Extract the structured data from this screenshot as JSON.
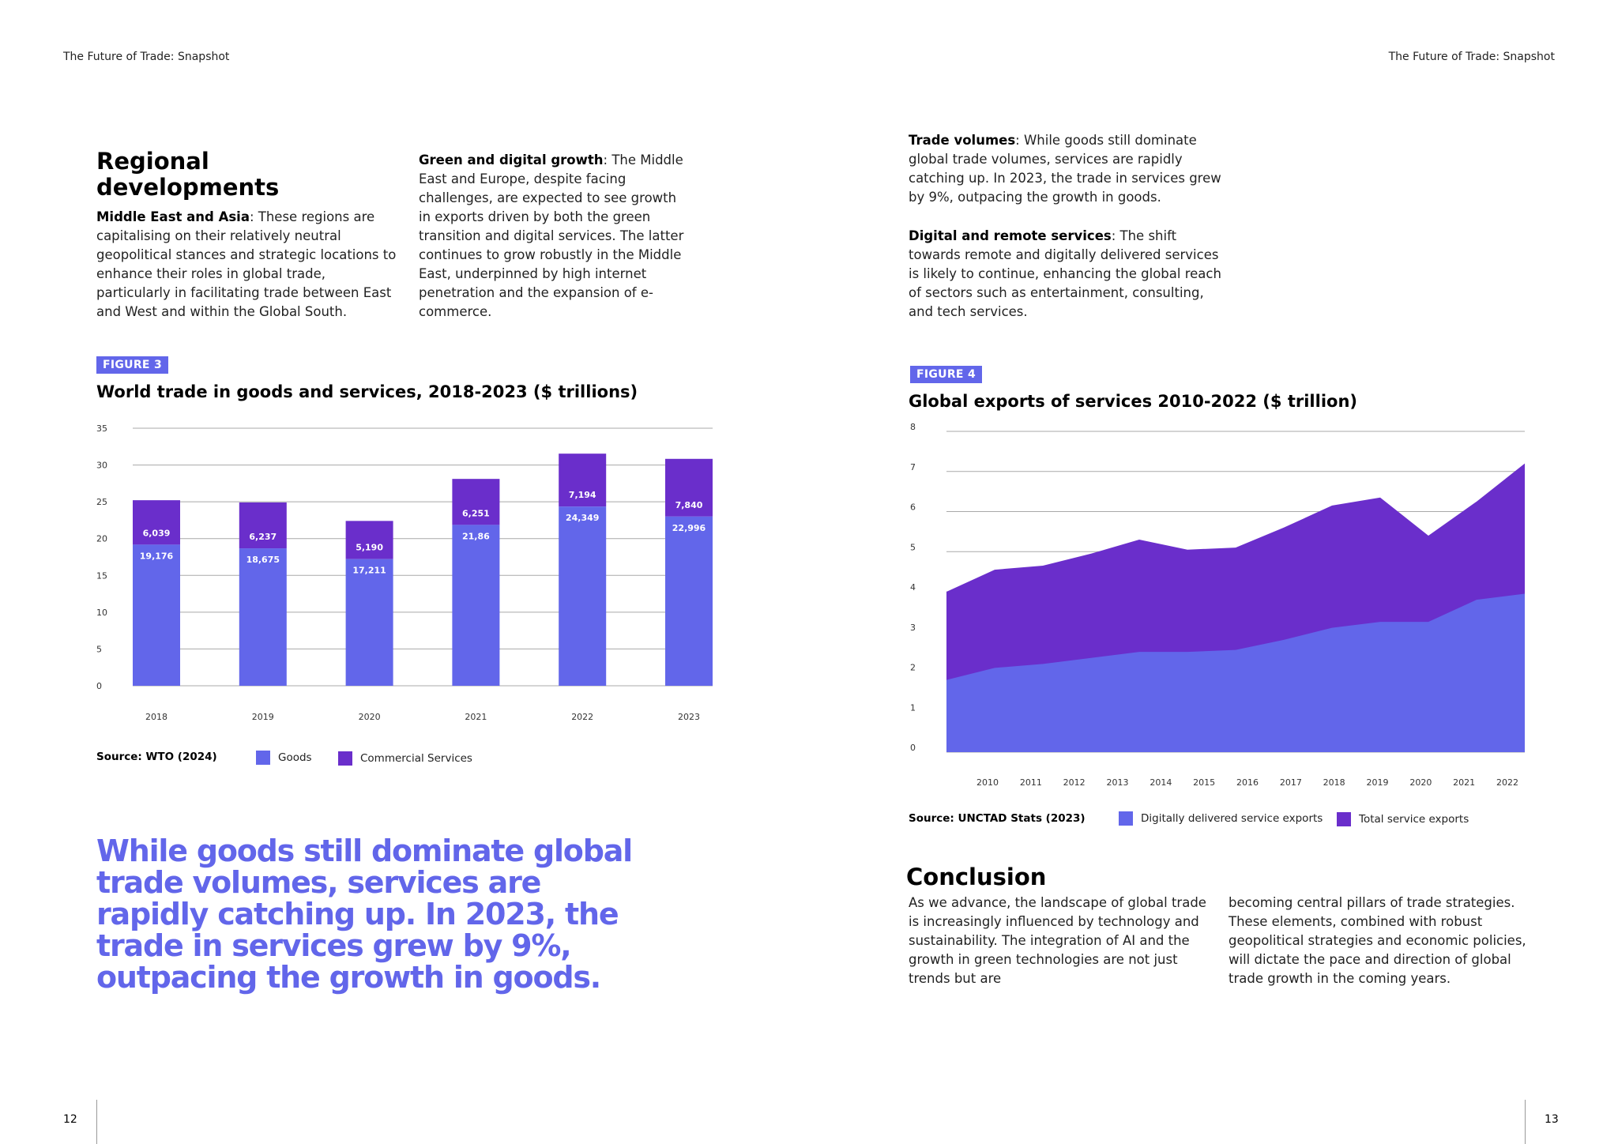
{
  "header": {
    "left_running_title": "The Future of Trade: Snapshot",
    "right_running_title": "The Future of Trade: Snapshot"
  },
  "left_page": {
    "heading": "Regional developments",
    "heading_line1": "Regional",
    "heading_line2": "developments",
    "para_mideast": {
      "label": "Middle East and Asia",
      "text": ": These regions are capitalising on their relatively neutral geopolitical stances and strategic locations to enhance their roles in global trade, particularly in facilitating trade between East and West and within the Global South."
    },
    "para_green": {
      "label": "Green and digital growth",
      "text": ": The Middle East and Europe, despite facing challenges, are expected to see growth in exports driven by both the green transition and digital services. The latter continues to grow robustly in the Middle East, underpinned by high internet penetration and the expansion of e-commerce."
    },
    "figure_label": "FIGURE 3",
    "figure_title": "World trade in goods and services, 2018-2023 ($ trillions)",
    "source": "Source: WTO (2024)",
    "legend": [
      "Goods",
      "Commercial Services"
    ],
    "quote": "While goods still dominate global trade volumes, services are rapidly catching up. In 2023, the trade in services grew by 9%, outpacing the growth in goods.",
    "page_number": "12"
  },
  "right_page": {
    "para_volumes": {
      "label": "Trade volumes",
      "text": ": While goods still dominate global trade volumes, services are rapidly catching up. In 2023, the trade in services grew by 9%, outpacing the growth in goods."
    },
    "para_digital": {
      "label": "Digital and remote services",
      "text": ": The shift towards remote and digitally delivered services is likely to continue, enhancing the global reach of sectors such as entertainment, consulting, and tech services."
    },
    "figure_label": "FIGURE 4",
    "figure_title": "Global exports of services 2010-2022 ($ trillion)",
    "source": "Source: UNCTAD Stats (2023)",
    "legend": [
      "Digitally delivered service exports",
      "Total service exports"
    ],
    "conclusion_heading": "Conclusion",
    "conclusion_col1": "As we advance, the landscape of global trade is increasingly influenced by technology and sustainability. The integration of AI and the growth in green technologies are not just trends but are",
    "conclusion_col2": "becoming central pillars of trade strategies. These elements, combined with robust geopolitical strategies and economic policies, will dictate the pace and direction of global trade growth in the coming years.",
    "page_number": "13"
  },
  "colors": {
    "goods": "#6266ea",
    "services": "#6a2ecb",
    "accent": "#6266ea",
    "grid": "#a9a9a9"
  },
  "chart_data": [
    {
      "type": "bar",
      "stacked": true,
      "title": "World trade in goods and services, 2018-2023 ($ trillions)",
      "categories": [
        "2018",
        "2019",
        "2020",
        "2021",
        "2022",
        "2023"
      ],
      "series": [
        {
          "name": "Goods",
          "values": [
            19.176,
            18.675,
            17.211,
            21.86,
            24.349,
            22.996
          ],
          "labels": [
            "19,176",
            "18,675",
            "17,211",
            "21,86",
            "24,349",
            "22,996"
          ]
        },
        {
          "name": "Commercial Services",
          "values": [
            6.039,
            6.237,
            5.19,
            6.251,
            7.194,
            7.84
          ],
          "labels": [
            "6,039",
            "6,237",
            "5,190",
            "6,251",
            "7,194",
            "7,840"
          ]
        }
      ],
      "yticks": [
        0,
        5,
        10,
        15,
        20,
        25,
        30,
        35
      ],
      "ylim": [
        0,
        35
      ],
      "grid": true,
      "legend_position": "bottom"
    },
    {
      "type": "area",
      "title": "Global exports of services 2010-2022 ($ trillion)",
      "x": [
        "2010",
        "2011",
        "2012",
        "2013",
        "2014",
        "2015",
        "2016",
        "2017",
        "2018",
        "2019",
        "2020",
        "2021",
        "2022"
      ],
      "series": [
        {
          "name": "Total service exports",
          "values": [
            4.0,
            4.55,
            4.65,
            4.95,
            5.3,
            5.05,
            5.1,
            5.6,
            6.15,
            6.35,
            5.4,
            6.25,
            7.2
          ]
        },
        {
          "name": "Digitally delivered service exports",
          "values": [
            1.8,
            2.1,
            2.2,
            2.35,
            2.5,
            2.5,
            2.55,
            2.8,
            3.1,
            3.25,
            3.25,
            3.8,
            3.95
          ]
        }
      ],
      "yticks": [
        0,
        1,
        2,
        3,
        4,
        5,
        6,
        7,
        8
      ],
      "ylim": [
        0,
        8
      ],
      "grid": true,
      "legend_position": "bottom"
    }
  ]
}
